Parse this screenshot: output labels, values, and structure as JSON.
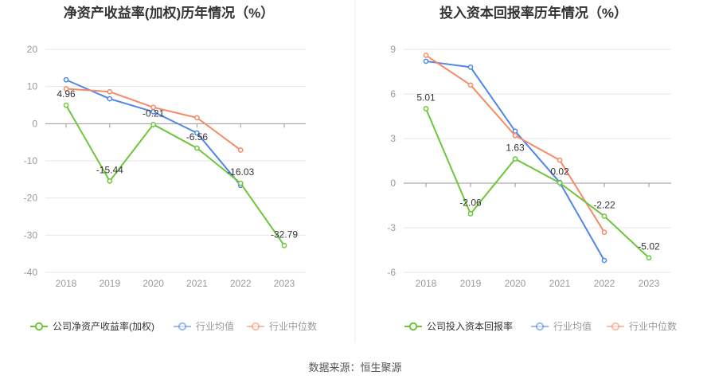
{
  "colors": {
    "company": "#6cc63a",
    "avg": "#4f87e8",
    "median": "#f58b66",
    "grid": "#e6e6e6",
    "zero": "#999999"
  },
  "source": "数据来源：恒生聚源",
  "chart_data": [
    {
      "type": "line",
      "title": "净资产收益率(加权)历年情况（%）",
      "x": [
        "2018",
        "2019",
        "2020",
        "2021",
        "2022",
        "2023"
      ],
      "ylim": [
        -40,
        20
      ],
      "yticks": [
        20,
        10,
        0,
        -10,
        -20,
        -30,
        -40
      ],
      "grid": true,
      "legend_position": "bottom",
      "series": [
        {
          "name": "公司净资产收益率(加权)",
          "values": [
            4.96,
            -15.44,
            -0.21,
            -6.56,
            -16.03,
            -32.79
          ],
          "labels": [
            "4.96",
            "-15.44",
            "-0.21",
            "-6.56",
            "-16.03",
            "-32.79"
          ]
        },
        {
          "name": "行业均值",
          "values": [
            11.8,
            6.7,
            3.2,
            -2.5,
            -16.6,
            null
          ]
        },
        {
          "name": "行业中位数",
          "values": [
            9.4,
            8.6,
            4.4,
            1.6,
            -7.1,
            null
          ]
        }
      ]
    },
    {
      "type": "line",
      "title": "投入资本回报率历年情况（%）",
      "x": [
        "2018",
        "2019",
        "2020",
        "2021",
        "2022",
        "2023"
      ],
      "ylim": [
        -6,
        9
      ],
      "yticks": [
        9,
        6,
        3,
        0,
        -3,
        -6
      ],
      "grid": true,
      "legend_position": "bottom",
      "series": [
        {
          "name": "公司投入资本回报率",
          "values": [
            5.01,
            -2.06,
            1.63,
            0.02,
            -2.22,
            -5.02
          ],
          "labels": [
            "5.01",
            "-2.06",
            "1.63",
            "0.02",
            "-2.22",
            "-5.02"
          ]
        },
        {
          "name": "行业均值",
          "values": [
            8.2,
            7.8,
            3.5,
            0.05,
            -5.2,
            null
          ]
        },
        {
          "name": "行业中位数",
          "values": [
            8.6,
            6.6,
            3.2,
            1.55,
            -3.3,
            null
          ]
        }
      ]
    }
  ]
}
